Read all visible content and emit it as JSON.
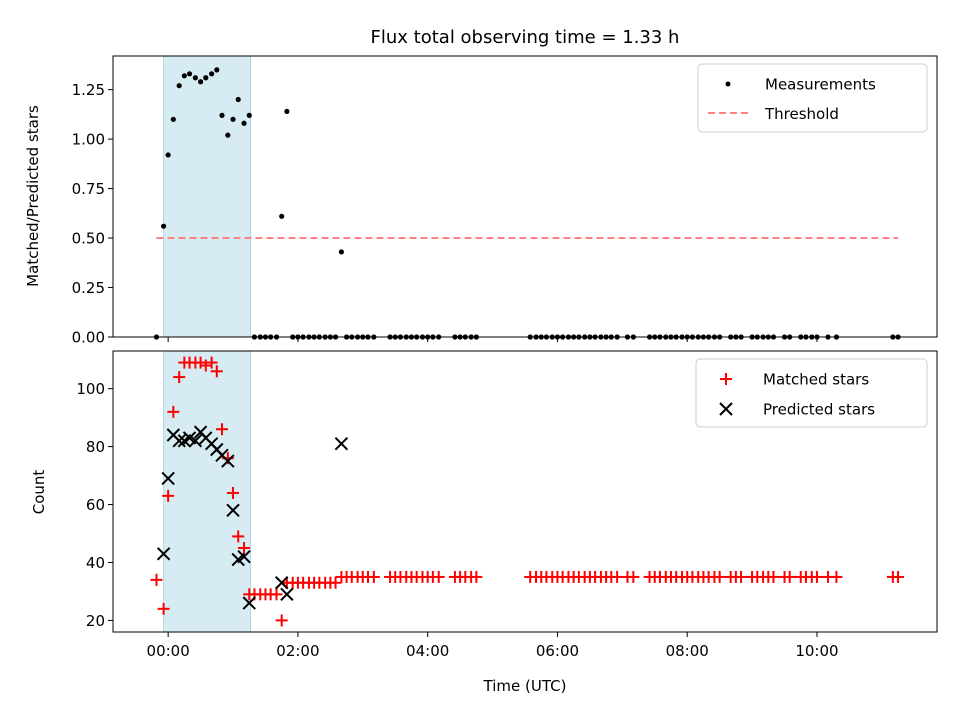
{
  "chart_data": [
    {
      "type": "scatter",
      "title": "Flux total observing time = 1.33 h",
      "xlabel": "",
      "ylabel": "Matched/Predicted stars",
      "xlim": [
        -0.85,
        11.85
      ],
      "ylim": [
        0,
        1.42
      ],
      "x_ticks": [
        0,
        2,
        4,
        6,
        8,
        10
      ],
      "y_ticks": [
        0.0,
        0.25,
        0.5,
        0.75,
        1.0,
        1.25
      ],
      "y_tick_labels": [
        "0.00",
        "0.25",
        "0.50",
        "0.75",
        "1.00",
        "1.25"
      ],
      "shaded_span": {
        "x": [
          -0.07,
          1.27
        ],
        "color": "#add8e6"
      },
      "legend": {
        "location": "upper right",
        "entries": [
          "Measurements",
          "Threshold"
        ]
      },
      "series": [
        {
          "name": "Measurements",
          "marker": "dot",
          "color": "#000000",
          "x": [
            -0.18,
            -0.07,
            0.0,
            0.08,
            0.17,
            0.25,
            0.33,
            0.42,
            0.5,
            0.58,
            0.67,
            0.75,
            0.83,
            0.92,
            1.0,
            1.08,
            1.17,
            1.25,
            1.75,
            1.83,
            2.67,
            1.33,
            1.42,
            1.5,
            1.58,
            1.67,
            1.92,
            2.0,
            2.08,
            2.17,
            2.25,
            2.33,
            2.42,
            2.5,
            2.58,
            2.75,
            2.83,
            2.92,
            3.0,
            3.08,
            3.17,
            3.42,
            3.5,
            3.58,
            3.67,
            3.75,
            3.83,
            3.92,
            4.0,
            4.08,
            4.17,
            4.42,
            4.5,
            4.58,
            4.67,
            4.75,
            5.58,
            5.67,
            5.75,
            5.83,
            5.92,
            6.0,
            6.08,
            6.17,
            6.25,
            6.33,
            6.42,
            6.5,
            6.58,
            6.67,
            6.75,
            6.83,
            6.92,
            7.08,
            7.17,
            7.42,
            7.5,
            7.58,
            7.67,
            7.75,
            7.83,
            7.92,
            8.0,
            8.08,
            8.17,
            8.25,
            8.33,
            8.42,
            8.5,
            8.67,
            8.75,
            8.83,
            9.0,
            9.08,
            9.17,
            9.25,
            9.33,
            9.5,
            9.58,
            9.75,
            9.83,
            9.92,
            10.0,
            10.17,
            10.3,
            11.17,
            11.25
          ],
          "y": [
            0.0,
            0.56,
            0.92,
            1.1,
            1.27,
            1.32,
            1.33,
            1.31,
            1.29,
            1.31,
            1.33,
            1.35,
            1.12,
            1.02,
            1.1,
            1.2,
            1.08,
            1.12,
            0.61,
            1.14,
            0.43,
            0.0,
            0.0,
            0.0,
            0.0,
            0.0,
            0.0,
            0.0,
            0.0,
            0.0,
            0.0,
            0.0,
            0.0,
            0.0,
            0.0,
            0.0,
            0.0,
            0.0,
            0.0,
            0.0,
            0.0,
            0.0,
            0.0,
            0.0,
            0.0,
            0.0,
            0.0,
            0.0,
            0.0,
            0.0,
            0.0,
            0.0,
            0.0,
            0.0,
            0.0,
            0.0,
            0.0,
            0.0,
            0.0,
            0.0,
            0.0,
            0.0,
            0.0,
            0.0,
            0.0,
            0.0,
            0.0,
            0.0,
            0.0,
            0.0,
            0.0,
            0.0,
            0.0,
            0.0,
            0.0,
            0.0,
            0.0,
            0.0,
            0.0,
            0.0,
            0.0,
            0.0,
            0.0,
            0.0,
            0.0,
            0.0,
            0.0,
            0.0,
            0.0,
            0.0,
            0.0,
            0.0,
            0.0,
            0.0,
            0.0,
            0.0,
            0.0,
            0.0,
            0.0,
            0.0,
            0.0,
            0.0,
            0.0,
            0.0,
            0.0,
            0.0,
            0.0
          ]
        },
        {
          "name": "Threshold",
          "marker": "dashed-line",
          "color": "#ff8080",
          "x": [
            -0.18,
            11.25
          ],
          "y": [
            0.5,
            0.5
          ]
        }
      ]
    },
    {
      "type": "scatter",
      "title": "",
      "xlabel": "Time (UTC)",
      "ylabel": "Count",
      "xlim": [
        -0.85,
        11.85
      ],
      "ylim": [
        16,
        113
      ],
      "x_ticks": [
        0,
        2,
        4,
        6,
        8,
        10
      ],
      "x_tick_labels": [
        "00:00",
        "02:00",
        "04:00",
        "06:00",
        "08:00",
        "10:00"
      ],
      "y_ticks": [
        20,
        40,
        60,
        80,
        100
      ],
      "y_tick_labels": [
        "20",
        "40",
        "60",
        "80",
        "100"
      ],
      "shaded_span": {
        "x": [
          -0.07,
          1.27
        ],
        "color": "#add8e6"
      },
      "legend": {
        "location": "upper right",
        "entries": [
          "Matched stars",
          "Predicted stars"
        ]
      },
      "series": [
        {
          "name": "Matched stars",
          "marker": "plus",
          "color": "#ff0000",
          "x": [
            -0.18,
            -0.07,
            0.0,
            0.08,
            0.17,
            0.25,
            0.33,
            0.42,
            0.5,
            0.58,
            0.67,
            0.75,
            0.83,
            0.92,
            1.0,
            1.08,
            1.17,
            1.25,
            1.33,
            1.42,
            1.5,
            1.58,
            1.67,
            1.75,
            1.83,
            1.92,
            2.0,
            2.08,
            2.17,
            2.25,
            2.33,
            2.42,
            2.5,
            2.58,
            2.67,
            2.75,
            2.83,
            2.92,
            3.0,
            3.08,
            3.17,
            3.42,
            3.5,
            3.58,
            3.67,
            3.75,
            3.83,
            3.92,
            4.0,
            4.08,
            4.17,
            4.42,
            4.5,
            4.58,
            4.67,
            4.75,
            5.58,
            5.67,
            5.75,
            5.83,
            5.92,
            6.0,
            6.08,
            6.17,
            6.25,
            6.33,
            6.42,
            6.5,
            6.58,
            6.67,
            6.75,
            6.83,
            6.92,
            7.08,
            7.17,
            7.42,
            7.5,
            7.58,
            7.67,
            7.75,
            7.83,
            7.92,
            8.0,
            8.08,
            8.17,
            8.25,
            8.33,
            8.42,
            8.5,
            8.67,
            8.75,
            8.83,
            9.0,
            9.08,
            9.17,
            9.25,
            9.33,
            9.5,
            9.58,
            9.75,
            9.83,
            9.92,
            10.0,
            10.17,
            10.3,
            11.17,
            11.25
          ],
          "y": [
            34,
            24,
            63,
            92,
            104,
            109,
            109,
            109,
            109,
            108,
            109,
            106,
            86,
            76,
            64,
            49,
            45,
            29,
            29,
            29,
            29,
            29,
            29,
            20,
            33,
            33,
            33,
            33,
            33,
            33,
            33,
            33,
            33,
            33,
            35,
            35,
            35,
            35,
            35,
            35,
            35,
            35,
            35,
            35,
            35,
            35,
            35,
            35,
            35,
            35,
            35,
            35,
            35,
            35,
            35,
            35,
            35,
            35,
            35,
            35,
            35,
            35,
            35,
            35,
            35,
            35,
            35,
            35,
            35,
            35,
            35,
            35,
            35,
            35,
            35,
            35,
            35,
            35,
            35,
            35,
            35,
            35,
            35,
            35,
            35,
            35,
            35,
            35,
            35,
            35,
            35,
            35,
            35,
            35,
            35,
            35,
            35,
            35,
            35,
            35,
            35,
            35,
            35,
            35,
            35,
            35,
            35
          ]
        },
        {
          "name": "Predicted stars",
          "marker": "x",
          "color": "#000000",
          "x": [
            -0.07,
            0.0,
            0.08,
            0.17,
            0.25,
            0.33,
            0.42,
            0.5,
            0.58,
            0.67,
            0.75,
            0.83,
            0.92,
            1.0,
            1.08,
            1.17,
            1.25,
            1.75,
            1.83,
            2.67
          ],
          "y": [
            43,
            69,
            84,
            82,
            82,
            83,
            82,
            85,
            83,
            81,
            79,
            77,
            75,
            58,
            41,
            42,
            26,
            33,
            29,
            81
          ]
        }
      ]
    }
  ]
}
